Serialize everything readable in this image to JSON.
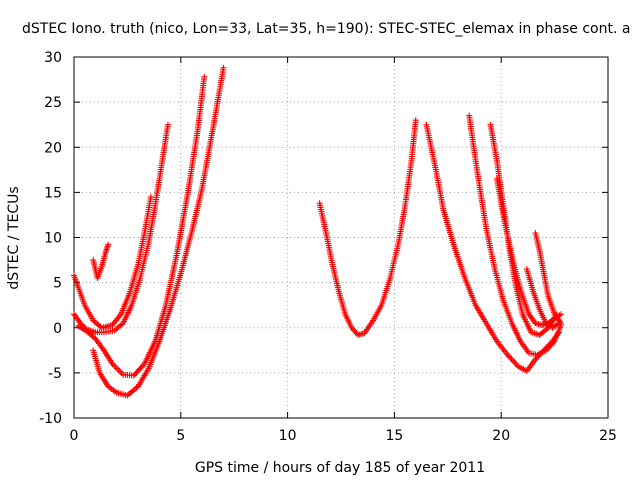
{
  "chart_data": {
    "type": "scatter",
    "title": "dSTEC Iono. truth (nico, Lon=33, Lat=35, h=190): STEC-STEC_elemax in phase cont. a",
    "xlabel": "GPS time / hours of day 185 of year 2011",
    "ylabel": "dSTEC  / TECUs",
    "xlim": [
      0,
      25
    ],
    "ylim": [
      -10,
      30
    ],
    "x_ticks": [
      0,
      5,
      10,
      15,
      20,
      25
    ],
    "y_ticks": [
      -10,
      -5,
      0,
      5,
      10,
      15,
      20,
      25,
      30
    ],
    "x_tick_labels": [
      "0",
      "5",
      "10",
      "15",
      "20",
      "25"
    ],
    "y_tick_labels": [
      "-10",
      "-5",
      "0",
      "5",
      "10",
      "15",
      "20",
      "25",
      "30"
    ],
    "grid": true,
    "marker": "+",
    "color": "#ff0000",
    "series": [
      {
        "x": [
          0.0,
          0.3,
          0.6,
          1.0,
          1.4,
          1.9,
          2.3,
          2.7,
          3.1,
          3.5,
          3.8,
          4.1,
          4.4
        ],
        "y": [
          1.5,
          0.5,
          -0.2,
          -0.5,
          -0.5,
          -0.3,
          0.5,
          2.5,
          5.5,
          9.5,
          13.5,
          18.0,
          22.5
        ]
      },
      {
        "x": [
          0.0,
          0.2,
          0.5,
          0.9,
          1.3,
          1.8,
          2.2,
          2.6,
          3.0,
          3.3,
          3.6
        ],
        "y": [
          5.8,
          4.5,
          2.5,
          0.8,
          0.0,
          0.3,
          1.5,
          3.8,
          7.0,
          10.5,
          14.5
        ]
      },
      {
        "x": [
          0.9,
          1.1,
          1.3,
          1.5,
          1.6
        ],
        "y": [
          7.5,
          5.5,
          6.8,
          8.5,
          9.2
        ]
      },
      {
        "x": [
          0.2,
          0.6,
          1.0,
          1.4,
          1.8,
          2.3,
          2.8,
          3.3,
          3.8,
          4.3,
          4.8,
          5.3,
          5.8,
          6.1
        ],
        "y": [
          0.2,
          -0.4,
          -1.2,
          -2.5,
          -4.0,
          -5.2,
          -5.3,
          -4.0,
          -1.5,
          2.5,
          8.0,
          14.5,
          22.0,
          27.8
        ]
      },
      {
        "x": [
          0.9,
          1.2,
          1.6,
          2.0,
          2.5,
          3.0,
          3.5,
          4.0,
          4.5,
          5.0,
          5.5,
          6.0,
          6.5,
          7.0
        ],
        "y": [
          -2.5,
          -5.0,
          -6.5,
          -7.2,
          -7.5,
          -6.5,
          -4.5,
          -1.5,
          2.0,
          6.0,
          10.5,
          15.5,
          22.0,
          28.8
        ]
      },
      {
        "x": [
          11.5,
          11.8,
          12.1,
          12.4,
          12.7,
          13.0,
          13.3,
          13.6,
          14.0,
          14.4,
          14.8,
          15.2,
          15.5,
          15.8,
          16.0
        ],
        "y": [
          13.8,
          10.5,
          7.0,
          4.0,
          1.5,
          0.0,
          -0.8,
          -0.6,
          0.8,
          2.5,
          5.5,
          9.5,
          13.5,
          18.5,
          23.0
        ]
      },
      {
        "x": [
          16.5,
          16.9,
          17.3,
          17.8,
          18.3,
          18.8,
          19.3,
          19.8,
          20.3,
          20.8,
          21.2,
          21.6,
          22.0,
          22.4,
          22.7
        ],
        "y": [
          22.5,
          18.0,
          13.0,
          9.0,
          5.5,
          2.5,
          0.5,
          -1.5,
          -3.0,
          -4.3,
          -4.8,
          -3.5,
          -2.5,
          -1.5,
          -0.5
        ]
      },
      {
        "x": [
          18.5,
          18.9,
          19.3,
          19.7,
          20.1,
          20.5,
          20.9,
          21.3,
          21.7,
          22.1,
          22.5,
          22.8
        ],
        "y": [
          23.5,
          17.0,
          11.0,
          6.5,
          3.0,
          0.5,
          -1.5,
          -2.8,
          -3.0,
          -2.5,
          -1.5,
          0.3
        ]
      },
      {
        "x": [
          19.5,
          19.8,
          20.1,
          20.4,
          20.7,
          21.0,
          21.4,
          21.8,
          22.2,
          22.6
        ],
        "y": [
          22.5,
          18.5,
          13.5,
          8.5,
          4.5,
          1.5,
          -0.5,
          -0.8,
          0.0,
          1.5
        ]
      },
      {
        "x": [
          19.8,
          20.1,
          20.4,
          20.7,
          21.0,
          21.3,
          21.6,
          21.9,
          22.2,
          22.5,
          22.8
        ],
        "y": [
          16.5,
          12.5,
          9.0,
          6.0,
          3.5,
          1.5,
          0.5,
          0.3,
          0.5,
          1.0,
          1.5
        ]
      },
      {
        "x": [
          21.6,
          21.8,
          22.0,
          22.2,
          22.5,
          22.8
        ],
        "y": [
          10.5,
          8.5,
          6.0,
          3.5,
          1.5,
          0.5
        ]
      },
      {
        "x": [
          21.2,
          21.5,
          21.8,
          22.1,
          22.4,
          22.7
        ],
        "y": [
          6.5,
          4.0,
          2.0,
          0.5,
          0.0,
          0.5
        ]
      }
    ]
  }
}
